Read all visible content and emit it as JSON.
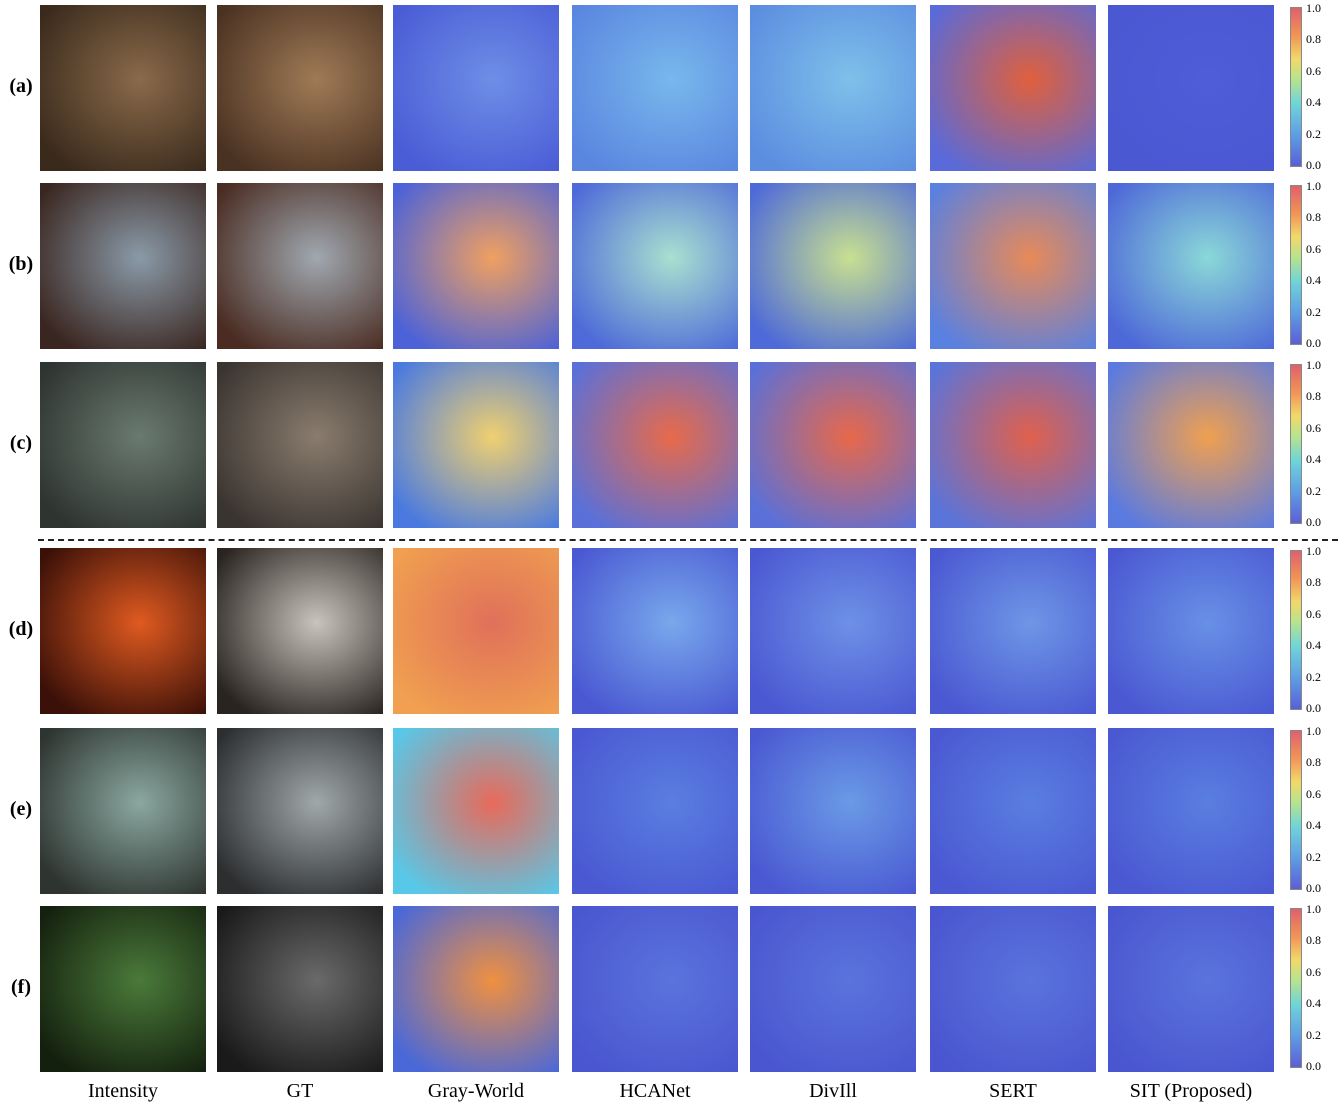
{
  "rows": [
    "(a)",
    "(b)",
    "(c)",
    "(d)",
    "(e)",
    "(f)"
  ],
  "columns": [
    "Intensity",
    "GT",
    "Gray-World",
    "HCANet",
    "DivIll",
    "SERT",
    "SIT (Proposed)"
  ],
  "colorbar_ticks": [
    "0.0",
    "0.2",
    "0.4",
    "0.6",
    "0.8",
    "1.0"
  ]
}
